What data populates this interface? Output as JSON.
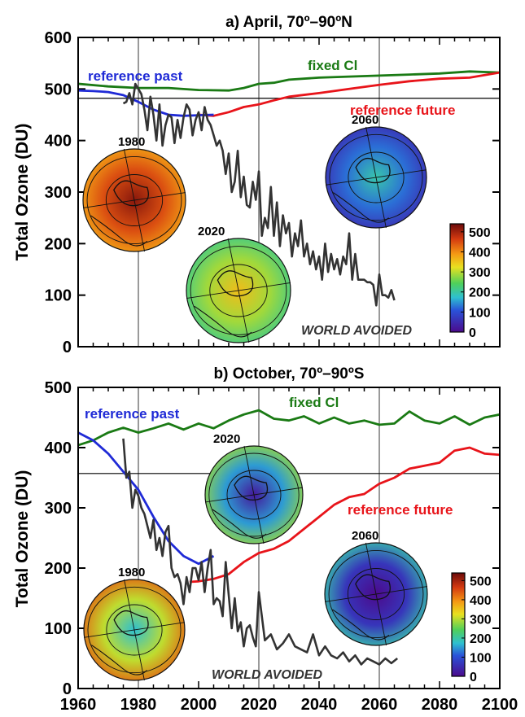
{
  "chart_data": [
    {
      "type": "line",
      "title": "a) April, 70º–90ºN",
      "ylabel": "Total Ozone (DU)",
      "xlim": [
        1960,
        2100
      ],
      "ylim": [
        0,
        600
      ],
      "yticks": [
        0,
        100,
        200,
        300,
        400,
        500,
        600
      ],
      "reference_line": 482,
      "vertical_lines": [
        1980,
        2020,
        2060
      ],
      "series": [
        {
          "name": "reference past",
          "color": "#1f2ad6",
          "x": [
            1960,
            1965,
            1970,
            1975,
            1980,
            1985,
            1990,
            1995,
            2000,
            2005
          ],
          "y": [
            497,
            496,
            494,
            488,
            475,
            460,
            450,
            448,
            449,
            450
          ]
        },
        {
          "name": "reference future",
          "color": "#e8141a",
          "x": [
            2000,
            2005,
            2010,
            2015,
            2020,
            2025,
            2030,
            2040,
            2050,
            2060,
            2070,
            2080,
            2090,
            2100
          ],
          "y": [
            450,
            448,
            455,
            465,
            470,
            478,
            485,
            492,
            500,
            508,
            515,
            520,
            522,
            532
          ]
        },
        {
          "name": "fixed Cl",
          "color": "#1a7a14",
          "x": [
            1960,
            1970,
            1980,
            1990,
            2000,
            2010,
            2015,
            2020,
            2025,
            2030,
            2040,
            2050,
            2060,
            2070,
            2080,
            2090,
            2100
          ],
          "y": [
            510,
            505,
            502,
            502,
            498,
            497,
            502,
            510,
            512,
            518,
            522,
            524,
            526,
            528,
            530,
            534,
            532
          ]
        },
        {
          "name": "WORLD AVOIDED",
          "color": "#333333",
          "x": [
            1975,
            1976,
            1977,
            1978,
            1979,
            1980,
            1981,
            1982,
            1983,
            1984,
            1985,
            1986,
            1987,
            1988,
            1989,
            1990,
            1991,
            1992,
            1993,
            1994,
            1995,
            1996,
            1997,
            1998,
            1999,
            2000,
            2001,
            2002,
            2003,
            2004,
            2005,
            2006,
            2007,
            2008,
            2009,
            2010,
            2011,
            2012,
            2013,
            2014,
            2015,
            2016,
            2017,
            2018,
            2019,
            2020,
            2021,
            2022,
            2023,
            2024,
            2025,
            2026,
            2027,
            2028,
            2029,
            2030,
            2031,
            2032,
            2033,
            2034,
            2035,
            2036,
            2037,
            2038,
            2039,
            2040,
            2041,
            2042,
            2043,
            2044,
            2045,
            2046,
            2047,
            2048,
            2049,
            2050,
            2051,
            2052,
            2053,
            2054,
            2055,
            2056,
            2057,
            2058,
            2059,
            2060,
            2061,
            2062,
            2063,
            2064,
            2065
          ],
          "y": [
            472,
            475,
            492,
            470,
            510,
            500,
            490,
            460,
            420,
            485,
            450,
            400,
            470,
            390,
            430,
            450,
            445,
            395,
            440,
            405,
            445,
            470,
            460,
            410,
            440,
            455,
            420,
            465,
            440,
            430,
            410,
            390,
            400,
            380,
            335,
            375,
            300,
            320,
            380,
            290,
            330,
            275,
            270,
            320,
            285,
            340,
            215,
            250,
            230,
            310,
            215,
            280,
            195,
            255,
            220,
            240,
            175,
            220,
            195,
            245,
            175,
            200,
            160,
            185,
            150,
            175,
            130,
            200,
            145,
            180,
            150,
            170,
            140,
            175,
            160,
            220,
            130,
            180,
            130,
            130,
            130,
            125,
            125,
            120,
            80,
            140,
            100,
            100,
            95,
            110,
            90
          ]
        }
      ],
      "globes": [
        {
          "year": "1980",
          "mean_du": 420
        },
        {
          "year": "2020",
          "mean_du": 270
        },
        {
          "year": "2060",
          "mean_du": 120
        }
      ],
      "colorbar": {
        "ticks": [
          0,
          100,
          200,
          300,
          400,
          500
        ]
      }
    },
    {
      "type": "line",
      "title": "b) October, 70º–90ºS",
      "ylabel": "Total Ozone (DU)",
      "xlim": [
        1960,
        2100
      ],
      "ylim": [
        0,
        500
      ],
      "yticks": [
        0,
        100,
        200,
        300,
        400,
        500
      ],
      "xticks": [
        1960,
        1980,
        2000,
        2020,
        2040,
        2060,
        2080,
        2100
      ],
      "reference_line": 357,
      "vertical_lines": [
        1980,
        2020,
        2060
      ],
      "series": [
        {
          "name": "reference past",
          "color": "#1f2ad6",
          "x": [
            1960,
            1965,
            1970,
            1975,
            1980,
            1985,
            1990,
            1995,
            2000,
            2005
          ],
          "y": [
            425,
            412,
            390,
            360,
            330,
            285,
            245,
            220,
            207,
            220
          ]
        },
        {
          "name": "reference future",
          "color": "#e8141a",
          "x": [
            1997,
            2000,
            2005,
            2010,
            2015,
            2020,
            2025,
            2030,
            2035,
            2040,
            2045,
            2050,
            2055,
            2060,
            2065,
            2070,
            2075,
            2080,
            2085,
            2090,
            2095,
            2100
          ],
          "y": [
            177,
            178,
            182,
            190,
            210,
            225,
            232,
            245,
            265,
            285,
            305,
            318,
            323,
            340,
            350,
            365,
            370,
            375,
            395,
            400,
            390,
            388
          ]
        },
        {
          "name": "fixed Cl",
          "color": "#1a7a14",
          "x": [
            1960,
            1965,
            1970,
            1975,
            1980,
            1985,
            1990,
            1995,
            2000,
            2005,
            2010,
            2015,
            2020,
            2025,
            2030,
            2035,
            2040,
            2045,
            2050,
            2055,
            2060,
            2065,
            2070,
            2075,
            2080,
            2085,
            2090,
            2095,
            2100
          ],
          "y": [
            404,
            412,
            425,
            433,
            425,
            432,
            440,
            430,
            440,
            432,
            445,
            455,
            462,
            448,
            445,
            452,
            440,
            450,
            440,
            445,
            438,
            440,
            460,
            445,
            440,
            452,
            438,
            450,
            455
          ]
        },
        {
          "name": "WORLD AVOIDED",
          "color": "#333333",
          "x": [
            1975,
            1976,
            1977,
            1978,
            1979,
            1980,
            1981,
            1982,
            1983,
            1984,
            1985,
            1986,
            1987,
            1988,
            1989,
            1990,
            1991,
            1992,
            1993,
            1994,
            1995,
            1996,
            1997,
            1998,
            1999,
            2000,
            2001,
            2002,
            2003,
            2004,
            2005,
            2006,
            2007,
            2008,
            2009,
            2010,
            2011,
            2012,
            2013,
            2014,
            2015,
            2016,
            2017,
            2018,
            2019,
            2020,
            2022,
            2024,
            2026,
            2028,
            2030,
            2032,
            2034,
            2036,
            2038,
            2040,
            2042,
            2044,
            2046,
            2048,
            2050,
            2052,
            2054,
            2056,
            2058,
            2060,
            2062,
            2064,
            2066
          ],
          "y": [
            415,
            350,
            360,
            300,
            330,
            320,
            300,
            290,
            270,
            250,
            280,
            230,
            250,
            220,
            260,
            270,
            200,
            185,
            190,
            175,
            140,
            185,
            160,
            200,
            200,
            180,
            210,
            160,
            200,
            230,
            140,
            150,
            145,
            120,
            210,
            155,
            100,
            150,
            95,
            110,
            70,
            100,
            105,
            85,
            70,
            160,
            80,
            90,
            65,
            75,
            90,
            70,
            65,
            60,
            90,
            55,
            70,
            55,
            50,
            60,
            45,
            55,
            40,
            50,
            45,
            40,
            50,
            42,
            50
          ]
        }
      ],
      "globes": [
        {
          "year": "1980",
          "mean_du": 360
        },
        {
          "year": "2020",
          "mean_du": 220
        },
        {
          "year": "2060",
          "mean_du": 140
        }
      ],
      "colorbar": {
        "ticks": [
          0,
          100,
          200,
          300,
          400,
          500
        ]
      }
    }
  ],
  "labels": {
    "reference_past": "reference past",
    "reference_future": "reference future",
    "fixed_cl": "fixed Cl",
    "world_avoided": "WORLD AVOIDED"
  },
  "colors": {
    "reference_past": "#1f2ad6",
    "reference_future": "#e8141a",
    "fixed_cl": "#1a7a14",
    "world_avoided": "#333333"
  }
}
